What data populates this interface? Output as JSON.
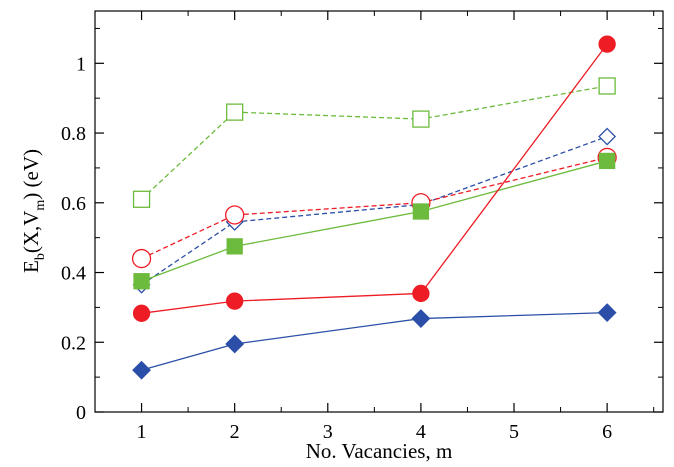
{
  "chart_data": {
    "type": "line",
    "xlabel": "No. Vacancies, m",
    "ylabel": {
      "E": "E",
      "b": "b",
      "open": "(X,V",
      "m": "m",
      "close": ")  (eV)"
    },
    "xlim": [
      0.5,
      6.6
    ],
    "ylim": [
      0,
      1.15
    ],
    "xticks": [
      1,
      2,
      3,
      4,
      5,
      6
    ],
    "xtick_labels": [
      "1",
      "2",
      "3",
      "4",
      "5",
      "6"
    ],
    "yticks": [
      0,
      0.2,
      0.4,
      0.6,
      0.8,
      1.0
    ],
    "ytick_labels": [
      "0",
      "0.2",
      "0.4",
      "0.6",
      "0.8",
      "1"
    ],
    "grid": false,
    "series": [
      {
        "color": "#6cbb3c",
        "marker": "square",
        "filled": false,
        "dashed": true,
        "x": [
          1,
          2,
          4,
          6
        ],
        "y": [
          0.61,
          0.86,
          0.84,
          0.935
        ]
      },
      {
        "color": "#2b4fa8",
        "marker": "diamond",
        "filled": false,
        "dashed": true,
        "x": [
          1,
          2,
          4,
          6
        ],
        "y": [
          0.365,
          0.545,
          0.595,
          0.79
        ]
      },
      {
        "color": "#ee1c25",
        "marker": "circle",
        "filled": false,
        "dashed": true,
        "x": [
          1,
          2,
          4,
          6
        ],
        "y": [
          0.44,
          0.565,
          0.6,
          0.73
        ]
      },
      {
        "color": "#6cbb3c",
        "marker": "square",
        "filled": true,
        "dashed": false,
        "x": [
          1,
          2,
          4,
          6
        ],
        "y": [
          0.375,
          0.475,
          0.575,
          0.72
        ]
      },
      {
        "color": "#ee1c25",
        "marker": "circle",
        "filled": true,
        "dashed": false,
        "x": [
          1,
          2,
          4,
          6
        ],
        "y": [
          0.283,
          0.318,
          0.34,
          1.055
        ]
      },
      {
        "color": "#2b4fa8",
        "marker": "diamond",
        "filled": true,
        "dashed": false,
        "x": [
          1,
          2,
          4,
          6
        ],
        "y": [
          0.12,
          0.195,
          0.268,
          0.285
        ]
      }
    ]
  }
}
